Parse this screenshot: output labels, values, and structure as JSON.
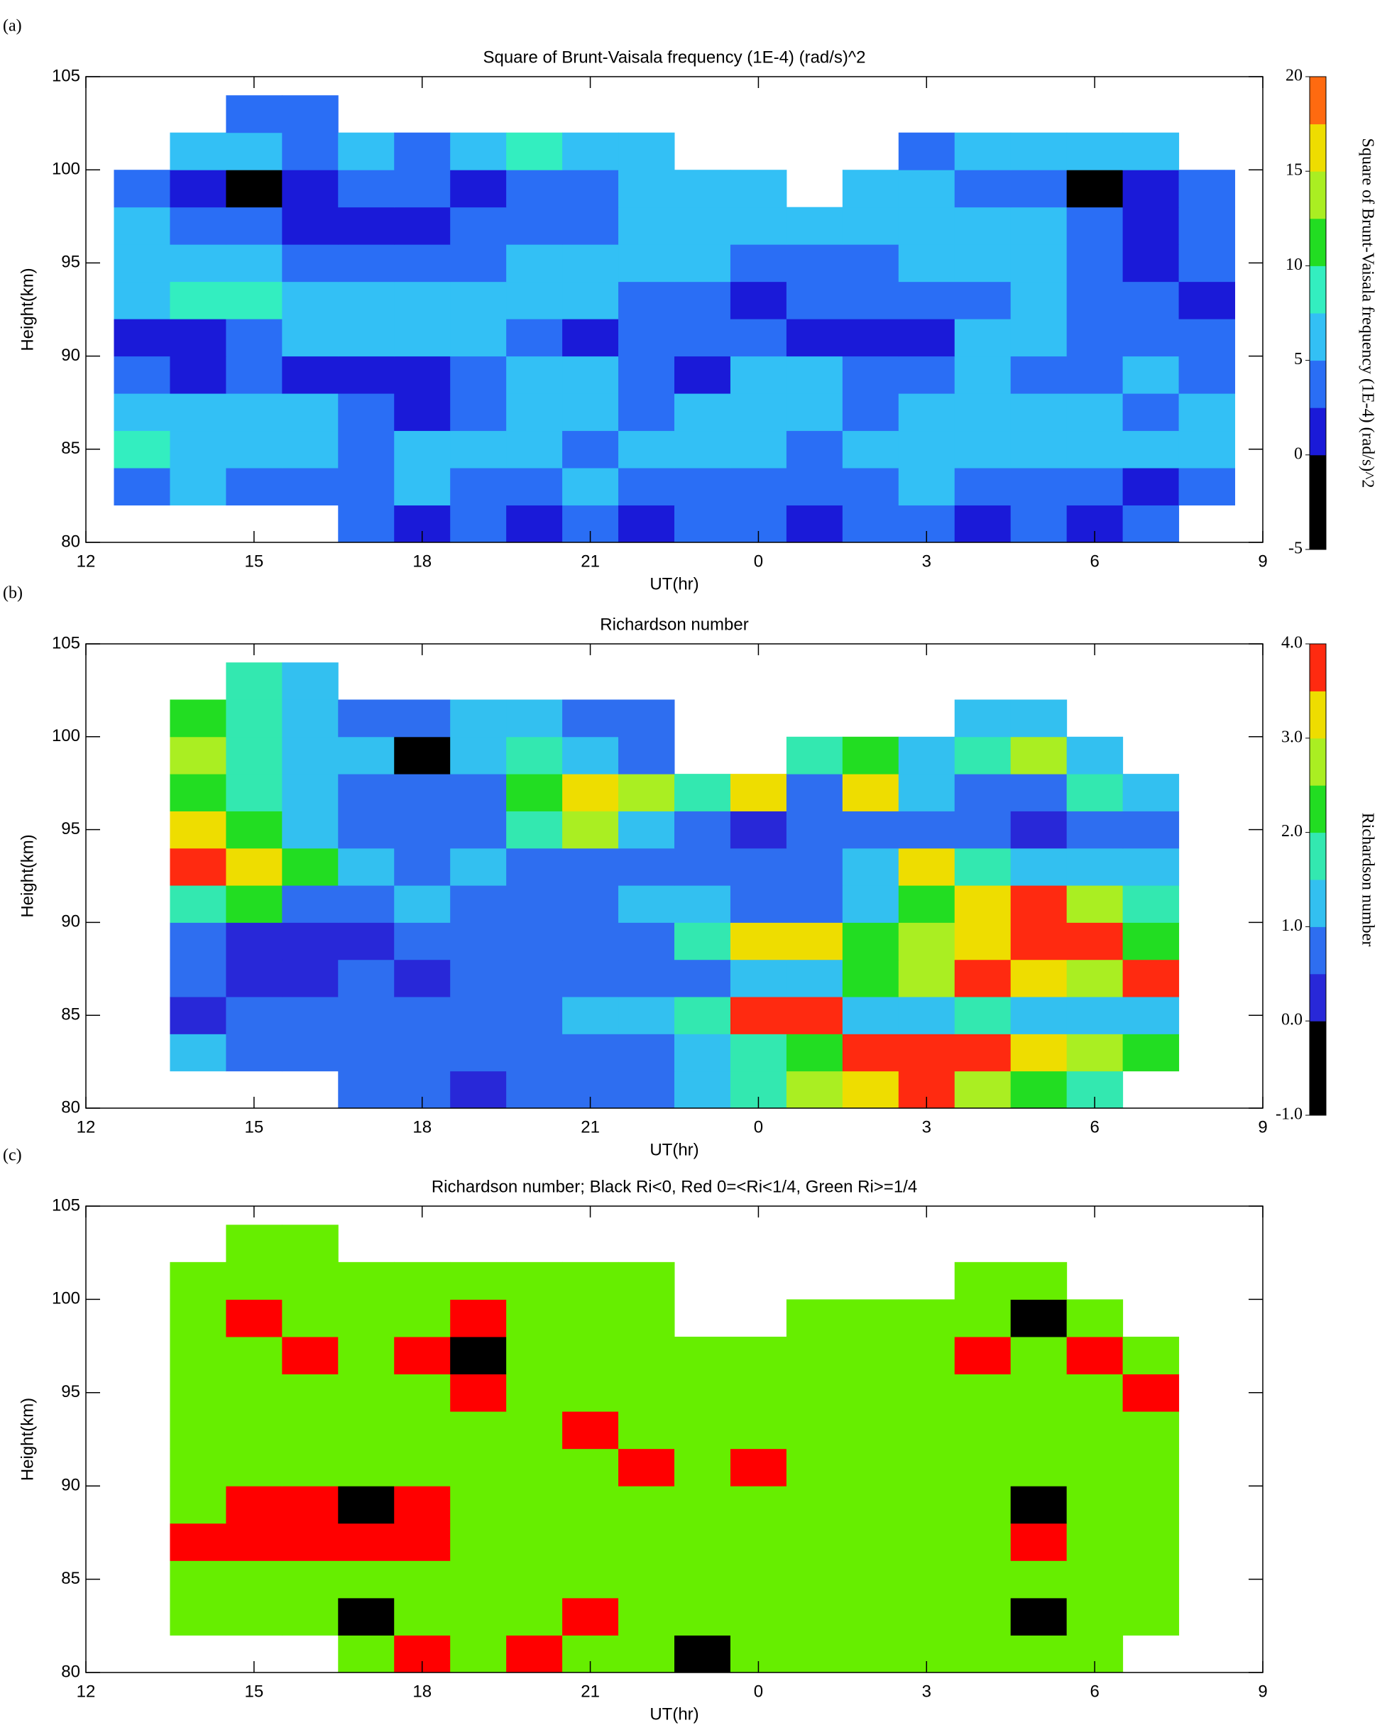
{
  "chart_data": [
    {
      "type": "heatmap",
      "panel_label": "(a)",
      "title": "Square of Brunt-Vaisala frequency (1E-4) (rad/s)^2",
      "xlabel": "UT(hr)",
      "ylabel": "Height(km)",
      "x": [
        13,
        14,
        15,
        16,
        17,
        18,
        19,
        20,
        21,
        22,
        23,
        24,
        25,
        26,
        27,
        28,
        29,
        30,
        31,
        32
      ],
      "y": [
        81,
        83,
        85,
        87,
        89,
        91,
        93,
        95,
        97,
        99,
        101,
        103
      ],
      "z": [
        [
          null,
          null,
          null,
          null,
          3,
          2,
          3,
          2,
          3,
          2,
          3,
          3,
          2,
          4,
          3,
          2,
          3,
          2,
          3,
          null
        ],
        [
          4,
          5,
          4,
          3,
          4,
          5,
          3,
          4,
          5,
          4,
          3,
          4,
          3,
          4,
          5,
          4,
          3,
          4,
          2,
          3
        ],
        [
          8,
          7,
          6,
          5,
          4,
          5,
          6,
          5,
          4,
          5,
          6,
          5,
          4,
          6,
          7,
          6,
          5,
          7,
          6,
          5
        ],
        [
          5,
          6,
          7,
          6,
          3,
          2,
          4,
          6,
          5,
          4,
          5,
          6,
          5,
          4,
          5,
          6,
          7,
          5,
          4,
          5
        ],
        [
          3,
          2,
          3,
          2,
          1,
          2,
          3,
          6,
          5,
          3,
          2,
          5,
          6,
          3,
          4,
          5,
          3,
          4,
          5,
          4
        ],
        [
          2,
          2,
          3,
          5,
          6,
          6,
          5,
          3,
          2,
          3,
          4,
          3,
          2,
          1,
          2,
          5,
          6,
          4,
          3,
          3
        ],
        [
          6,
          8,
          8,
          6,
          5,
          7,
          7,
          6,
          5,
          4,
          3,
          2,
          3,
          4,
          3,
          3,
          6,
          4,
          3,
          2
        ],
        [
          7,
          6,
          5,
          4,
          3,
          3,
          4,
          6,
          7,
          6,
          5,
          4,
          3,
          4,
          6,
          7,
          5,
          3,
          2,
          3
        ],
        [
          6,
          4,
          3,
          2,
          2,
          2,
          3,
          4,
          4,
          6,
          7,
          7,
          6,
          6,
          7,
          7,
          5,
          3,
          2,
          3
        ],
        [
          4,
          2,
          -1,
          2,
          3,
          3,
          2,
          3,
          4,
          5,
          6,
          6,
          null,
          6,
          5,
          4,
          3,
          -1,
          2,
          4
        ],
        [
          null,
          5,
          6,
          4,
          5,
          4,
          5,
          8,
          7,
          5,
          null,
          null,
          null,
          null,
          4,
          5,
          6,
          5,
          5,
          null
        ],
        [
          null,
          null,
          3,
          4,
          null,
          null,
          null,
          null,
          null,
          null,
          null,
          null,
          null,
          null,
          null,
          null,
          null,
          null,
          null,
          null
        ]
      ],
      "xlim": [
        12,
        33
      ],
      "xticks": [
        12,
        15,
        18,
        21,
        {
          "value": 24,
          "label": "0"
        },
        {
          "value": 27,
          "label": "3"
        },
        {
          "value": 30,
          "label": "6"
        },
        {
          "value": 33,
          "label": "9"
        }
      ],
      "ylim": [
        80,
        105
      ],
      "yticks": [
        80,
        85,
        90,
        95,
        100,
        105
      ],
      "colorbar": {
        "label": "Square of Brunt-Vaisala frequency (1E-4) (rad/s)^2",
        "zlim": [
          -5,
          20
        ],
        "ticks": [
          -5,
          0,
          5,
          10,
          15,
          20
        ],
        "colors": [
          "#000000",
          "#000000",
          "#1a1ad8",
          "#2a6ef5",
          "#33c0f5",
          "#33eec0",
          "#22dd22",
          "#aaee22",
          "#eedd00",
          "#ff6a10"
        ]
      }
    },
    {
      "type": "heatmap",
      "panel_label": "(b)",
      "title": "Richardson number",
      "xlabel": "UT(hr)",
      "ylabel": "Height(km)",
      "x": [
        13,
        14,
        15,
        16,
        17,
        18,
        19,
        20,
        21,
        22,
        23,
        24,
        25,
        26,
        27,
        28,
        29,
        30,
        31,
        32
      ],
      "y": [
        81,
        83,
        85,
        87,
        89,
        91,
        93,
        95,
        97,
        99,
        101,
        103
      ],
      "z": [
        [
          null,
          null,
          null,
          null,
          0.6,
          0.5,
          0.4,
          0.6,
          0.5,
          0.8,
          1.2,
          1.5,
          2.5,
          3,
          3.5,
          2.5,
          2,
          1.5,
          null,
          null
        ],
        [
          null,
          1,
          0.8,
          0.6,
          0.8,
          0.9,
          0.7,
          0.6,
          0.5,
          0.9,
          1.2,
          1.5,
          2,
          3.5,
          3.5,
          3.8,
          3,
          2.5,
          2,
          null
        ],
        [
          null,
          0.4,
          0.5,
          0.6,
          0.5,
          0.6,
          0.7,
          0.8,
          1,
          1.2,
          1.5,
          3.8,
          3.5,
          1.2,
          1,
          1.5,
          1.2,
          1,
          1.1,
          null
        ],
        [
          null,
          0.5,
          0.4,
          0.3,
          0.5,
          0.4,
          0.5,
          0.6,
          0.7,
          0.6,
          0.8,
          1,
          1.2,
          2,
          2.5,
          3.5,
          3,
          2.8,
          3.5,
          null
        ],
        [
          null,
          0.6,
          0.3,
          0.2,
          0.4,
          0.6,
          0.8,
          0.6,
          0.5,
          0.8,
          1.5,
          3.2,
          3,
          2,
          2.5,
          3.2,
          3.5,
          3.6,
          2,
          null
        ],
        [
          null,
          1.5,
          2,
          0.5,
          0.6,
          1.2,
          0.8,
          0.5,
          0.6,
          1,
          1.2,
          0.6,
          0.5,
          1.2,
          2,
          3,
          3.5,
          2.5,
          1.5,
          null
        ],
        [
          null,
          3.5,
          3.2,
          2,
          1.2,
          0.8,
          1,
          0.8,
          0.6,
          0.5,
          0.6,
          0.5,
          0.8,
          1.2,
          3.2,
          1.5,
          1.2,
          1,
          1.2,
          null
        ],
        [
          null,
          3.2,
          2,
          1.2,
          0.8,
          0.6,
          0.5,
          1.5,
          2.5,
          1,
          0.6,
          0.4,
          0.6,
          0.5,
          0.6,
          0.5,
          0.4,
          0.6,
          0.8,
          null
        ],
        [
          null,
          2,
          1.5,
          1,
          0.6,
          0.5,
          0.8,
          2,
          3,
          2.5,
          1.5,
          3.2,
          0.8,
          3.2,
          1,
          0.8,
          0.6,
          1.5,
          1,
          null
        ],
        [
          null,
          2.5,
          1.5,
          1.2,
          1,
          -0.5,
          1.2,
          1.5,
          1,
          0.8,
          null,
          null,
          1.5,
          2,
          1.2,
          1.5,
          2.5,
          1.2,
          null,
          null
        ],
        [
          null,
          2,
          1.8,
          1.2,
          0.8,
          0.6,
          1,
          1.2,
          0.8,
          0.6,
          null,
          null,
          null,
          null,
          null,
          1,
          1.2,
          null,
          null,
          null
        ],
        [
          null,
          null,
          1.5,
          1.2,
          null,
          null,
          null,
          null,
          null,
          null,
          null,
          null,
          null,
          null,
          null,
          null,
          null,
          null,
          null,
          null
        ]
      ],
      "xlim": [
        12,
        33
      ],
      "xticks": [
        12,
        15,
        18,
        21,
        {
          "value": 24,
          "label": "0"
        },
        {
          "value": 27,
          "label": "3"
        },
        {
          "value": 30,
          "label": "6"
        },
        {
          "value": 33,
          "label": "9"
        }
      ],
      "ylim": [
        80,
        105
      ],
      "yticks": [
        80,
        85,
        90,
        95,
        100,
        105
      ],
      "colorbar": {
        "label": "Richardson number",
        "zlim": [
          -1,
          4
        ],
        "ticks": [
          {
            "value": -1,
            "label": "-1.0"
          },
          {
            "value": 0,
            "label": "0.0"
          },
          {
            "value": 1,
            "label": "1.0"
          },
          {
            "value": 2,
            "label": "2.0"
          },
          {
            "value": 3,
            "label": "3.0"
          },
          {
            "value": 4,
            "label": "4.0"
          }
        ],
        "colors": [
          "#000000",
          "#000000",
          "#2828d8",
          "#2e6ef0",
          "#33c0f0",
          "#33e8b0",
          "#22dd22",
          "#aaee22",
          "#eedd00",
          "#ff2a10"
        ]
      }
    },
    {
      "type": "category-map",
      "panel_label": "(c)",
      "title": "Richardson number; Black Ri<0, Red 0=<Ri<1/4, Green Ri>=1/4",
      "xlabel": "UT(hr)",
      "ylabel": "Height(km)",
      "x": [
        13,
        14,
        15,
        16,
        17,
        18,
        19,
        20,
        21,
        22,
        23,
        24,
        25,
        26,
        27,
        28,
        29,
        30,
        31,
        32
      ],
      "y": [
        81,
        83,
        85,
        87,
        89,
        91,
        93,
        95,
        97,
        99,
        101,
        103
      ],
      "z": [
        [
          null,
          null,
          null,
          null,
          2,
          1,
          2,
          1,
          2,
          2,
          0,
          2,
          2,
          2,
          2,
          2,
          2,
          2,
          null,
          null
        ],
        [
          null,
          2,
          2,
          2,
          0,
          2,
          2,
          2,
          1,
          2,
          2,
          2,
          2,
          2,
          2,
          2,
          0,
          2,
          2,
          null
        ],
        [
          null,
          2,
          2,
          2,
          2,
          2,
          2,
          2,
          2,
          2,
          2,
          2,
          2,
          2,
          2,
          2,
          2,
          2,
          2,
          null
        ],
        [
          null,
          1,
          1,
          1,
          1,
          1,
          2,
          2,
          2,
          2,
          2,
          2,
          2,
          2,
          2,
          2,
          1,
          2,
          2,
          null
        ],
        [
          null,
          2,
          1,
          1,
          0,
          1,
          2,
          2,
          2,
          2,
          2,
          2,
          2,
          2,
          2,
          2,
          0,
          2,
          2,
          null
        ],
        [
          null,
          2,
          2,
          2,
          2,
          2,
          2,
          2,
          2,
          1,
          2,
          1,
          2,
          2,
          2,
          2,
          2,
          2,
          2,
          null
        ],
        [
          null,
          2,
          2,
          2,
          2,
          2,
          2,
          2,
          1,
          2,
          2,
          2,
          2,
          2,
          2,
          2,
          2,
          2,
          2,
          null
        ],
        [
          null,
          2,
          2,
          2,
          2,
          2,
          1,
          2,
          2,
          2,
          2,
          2,
          2,
          2,
          2,
          2,
          2,
          2,
          1,
          null
        ],
        [
          null,
          2,
          2,
          1,
          2,
          1,
          0,
          2,
          2,
          2,
          2,
          2,
          2,
          2,
          2,
          1,
          2,
          1,
          2,
          null
        ],
        [
          null,
          2,
          1,
          2,
          2,
          2,
          1,
          2,
          2,
          2,
          null,
          null,
          2,
          2,
          2,
          2,
          0,
          2,
          null,
          null
        ],
        [
          null,
          2,
          2,
          2,
          2,
          2,
          2,
          2,
          2,
          2,
          null,
          null,
          null,
          null,
          null,
          2,
          2,
          null,
          null,
          null
        ],
        [
          null,
          null,
          2,
          2,
          null,
          null,
          null,
          null,
          null,
          null,
          null,
          null,
          null,
          null,
          null,
          null,
          null,
          null,
          null,
          null
        ]
      ],
      "category_colors": [
        "#000000",
        "#ff0000",
        "#66ee00"
      ],
      "xlim": [
        12,
        33
      ],
      "xticks": [
        12,
        15,
        18,
        21,
        {
          "value": 24,
          "label": "0"
        },
        {
          "value": 27,
          "label": "3"
        },
        {
          "value": 30,
          "label": "6"
        },
        {
          "value": 33,
          "label": "9"
        }
      ],
      "ylim": [
        80,
        105
      ],
      "yticks": [
        80,
        85,
        90,
        95,
        100,
        105
      ]
    }
  ]
}
